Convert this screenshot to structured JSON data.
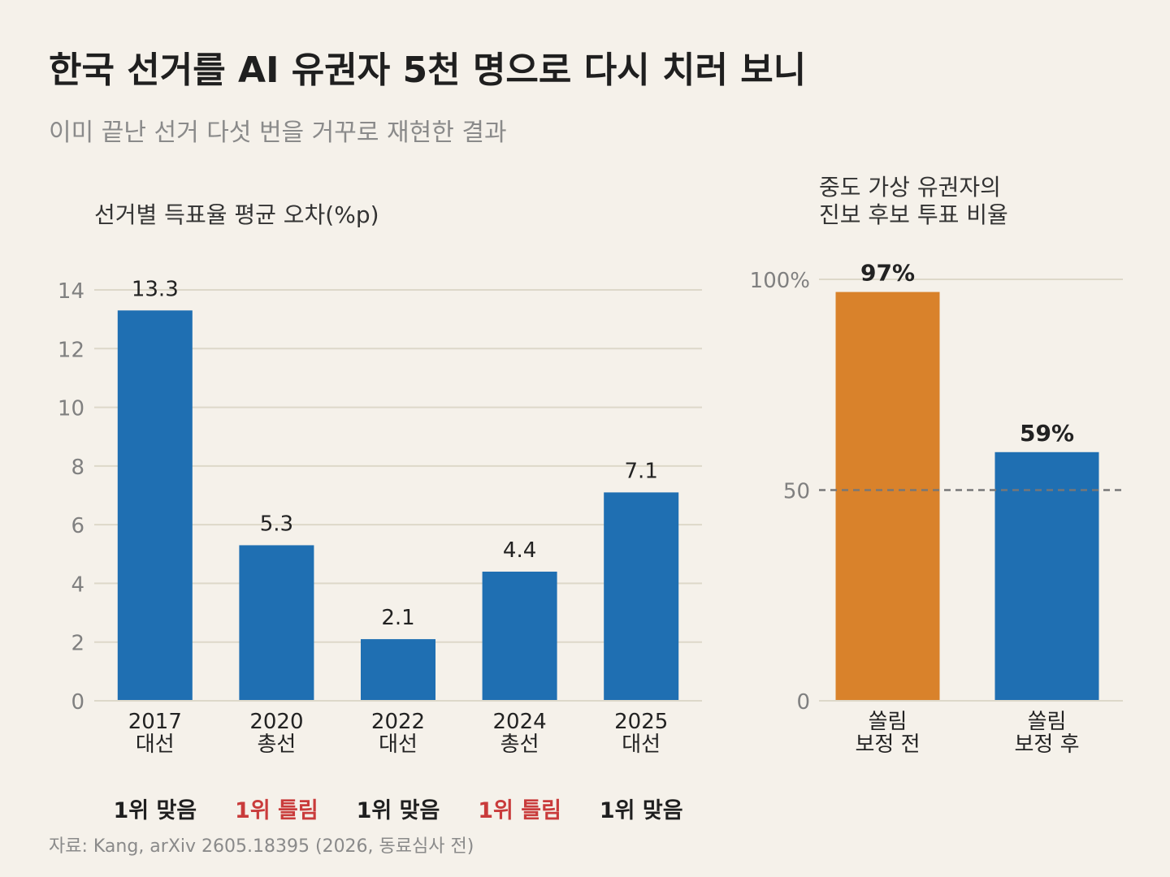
{
  "title": "한국 선거를 AI 유권자 5천 명으로 다시 치러 보니",
  "subtitle": "이미 끝난 선거 다섯 번을 거꾸로 재현한 결과",
  "source": "자료: Kang, arXiv 2605.18395 (2026, 동료심사 전)",
  "colors": {
    "background": "#f5f1ea",
    "bar_blue": "#1f6fb2",
    "bar_orange": "#d9822b",
    "wrong_red": "#c93b3b",
    "grid": "#ddd8c9",
    "axis_text": "#808080"
  },
  "chart_data": [
    {
      "type": "bar",
      "title": "선거별 득표율 평균 오차(%p)",
      "categories": [
        "2017\n대선",
        "2020\n총선",
        "2022\n대선",
        "2024\n총선",
        "2025\n대선"
      ],
      "values": [
        13.3,
        5.3,
        2.1,
        4.4,
        7.1
      ],
      "value_labels": [
        "13.3",
        "5.3",
        "2.1",
        "4.4",
        "7.1"
      ],
      "ylim": [
        0,
        14
      ],
      "yticks": [
        0,
        2,
        4,
        6,
        8,
        10,
        12,
        14
      ],
      "grid": true,
      "xlabel": "",
      "ylabel": "",
      "annotations": [
        {
          "text": "1위 맞음",
          "status": "correct"
        },
        {
          "text": "1위 틀림",
          "status": "wrong"
        },
        {
          "text": "1위 맞음",
          "status": "correct"
        },
        {
          "text": "1위 틀림",
          "status": "wrong"
        },
        {
          "text": "1위 맞음",
          "status": "correct"
        }
      ]
    },
    {
      "type": "bar",
      "title": "중도 가상 유권자의\n진보 후보 투표 비율",
      "categories": [
        "쏠림\n보정 전",
        "쏠림\n보정 후"
      ],
      "values": [
        97,
        59
      ],
      "value_labels": [
        "97%",
        "59%"
      ],
      "ylim": [
        0,
        100
      ],
      "yticks": [
        0,
        50,
        100
      ],
      "ytick_labels": [
        "0",
        "50",
        "100%"
      ],
      "reference_line": 50,
      "grid": true,
      "xlabel": "",
      "ylabel": ""
    }
  ]
}
